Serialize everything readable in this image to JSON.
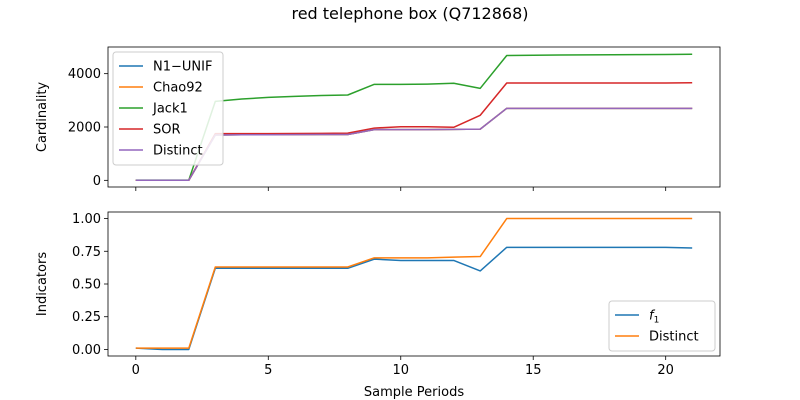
{
  "figure": {
    "title": "red telephone box (Q712868)"
  },
  "chart_data": [
    {
      "type": "line",
      "xlabel": "",
      "ylabel": "Cardinality",
      "xlim": [
        -1.05,
        22.05
      ],
      "ylim": [
        -250,
        5000
      ],
      "xticks": [
        0,
        5,
        10,
        15,
        20
      ],
      "xtick_labels": [
        "",
        "",
        "",
        "",
        ""
      ],
      "yticks": [
        0,
        2000,
        4000
      ],
      "ytick_labels": [
        "0",
        "2000",
        "4000"
      ],
      "legend": "upper-left",
      "x": [
        0,
        1,
        2,
        3,
        4,
        5,
        6,
        7,
        8,
        9,
        10,
        11,
        12,
        13,
        14,
        15,
        16,
        17,
        18,
        19,
        20,
        21
      ],
      "series": [
        {
          "name": "N1−UNIF",
          "color": "#1f77b4",
          "values": [
            5,
            5,
            5,
            1700,
            1710,
            1710,
            1715,
            1720,
            1720,
            1900,
            1900,
            1900,
            1910,
            1920,
            2700,
            2700,
            2700,
            2700,
            2700,
            2700,
            2700,
            2700
          ]
        },
        {
          "name": "Chao92",
          "color": "#ff7f0e",
          "values": [
            5,
            5,
            5,
            1700,
            1710,
            1710,
            1715,
            1720,
            1720,
            1900,
            1900,
            1900,
            1910,
            1920,
            2700,
            2700,
            2700,
            2700,
            2700,
            2700,
            2700,
            2700
          ]
        },
        {
          "name": "Jack1",
          "color": "#2ca02c",
          "values": [
            10,
            10,
            10,
            2960,
            3050,
            3110,
            3150,
            3180,
            3200,
            3600,
            3600,
            3610,
            3640,
            3450,
            4680,
            4690,
            4700,
            4705,
            4710,
            4715,
            4720,
            4730
          ]
        },
        {
          "name": "SOR",
          "color": "#d62728",
          "values": [
            5,
            5,
            5,
            1750,
            1750,
            1750,
            1755,
            1760,
            1770,
            1960,
            2010,
            2010,
            1990,
            2440,
            3650,
            3650,
            3650,
            3650,
            3650,
            3650,
            3650,
            3660
          ]
        },
        {
          "name": "Distinct",
          "color": "#9467bd",
          "values": [
            5,
            5,
            5,
            1700,
            1710,
            1710,
            1715,
            1720,
            1720,
            1900,
            1900,
            1900,
            1910,
            1920,
            2700,
            2700,
            2700,
            2700,
            2700,
            2700,
            2700,
            2700
          ]
        }
      ]
    },
    {
      "type": "line",
      "xlabel": "Sample Periods",
      "ylabel": "Indicators",
      "xlim": [
        -1.05,
        22.05
      ],
      "ylim": [
        -0.05,
        1.05
      ],
      "xticks": [
        0,
        5,
        10,
        15,
        20
      ],
      "xtick_labels": [
        "0",
        "5",
        "10",
        "15",
        "20"
      ],
      "yticks": [
        0,
        0.25,
        0.5,
        0.75,
        1.0
      ],
      "ytick_labels": [
        "0.00",
        "0.25",
        "0.50",
        "0.75",
        "1.00"
      ],
      "legend": "lower-right",
      "x": [
        0,
        1,
        2,
        3,
        4,
        5,
        6,
        7,
        8,
        9,
        10,
        11,
        12,
        13,
        14,
        15,
        16,
        17,
        18,
        19,
        20,
        21
      ],
      "series": [
        {
          "name": "f",
          "name_subscript": "1",
          "color": "#1f77b4",
          "values": [
            0.01,
            0.0,
            0.0,
            0.62,
            0.62,
            0.62,
            0.62,
            0.62,
            0.62,
            0.69,
            0.68,
            0.68,
            0.68,
            0.6,
            0.78,
            0.78,
            0.78,
            0.78,
            0.78,
            0.78,
            0.78,
            0.775
          ]
        },
        {
          "name": "Distinct",
          "color": "#ff7f0e",
          "values": [
            0.01,
            0.01,
            0.01,
            0.63,
            0.63,
            0.63,
            0.63,
            0.63,
            0.63,
            0.7,
            0.7,
            0.7,
            0.705,
            0.71,
            1.0,
            1.0,
            1.0,
            1.0,
            1.0,
            1.0,
            1.0,
            1.0
          ]
        }
      ]
    }
  ]
}
